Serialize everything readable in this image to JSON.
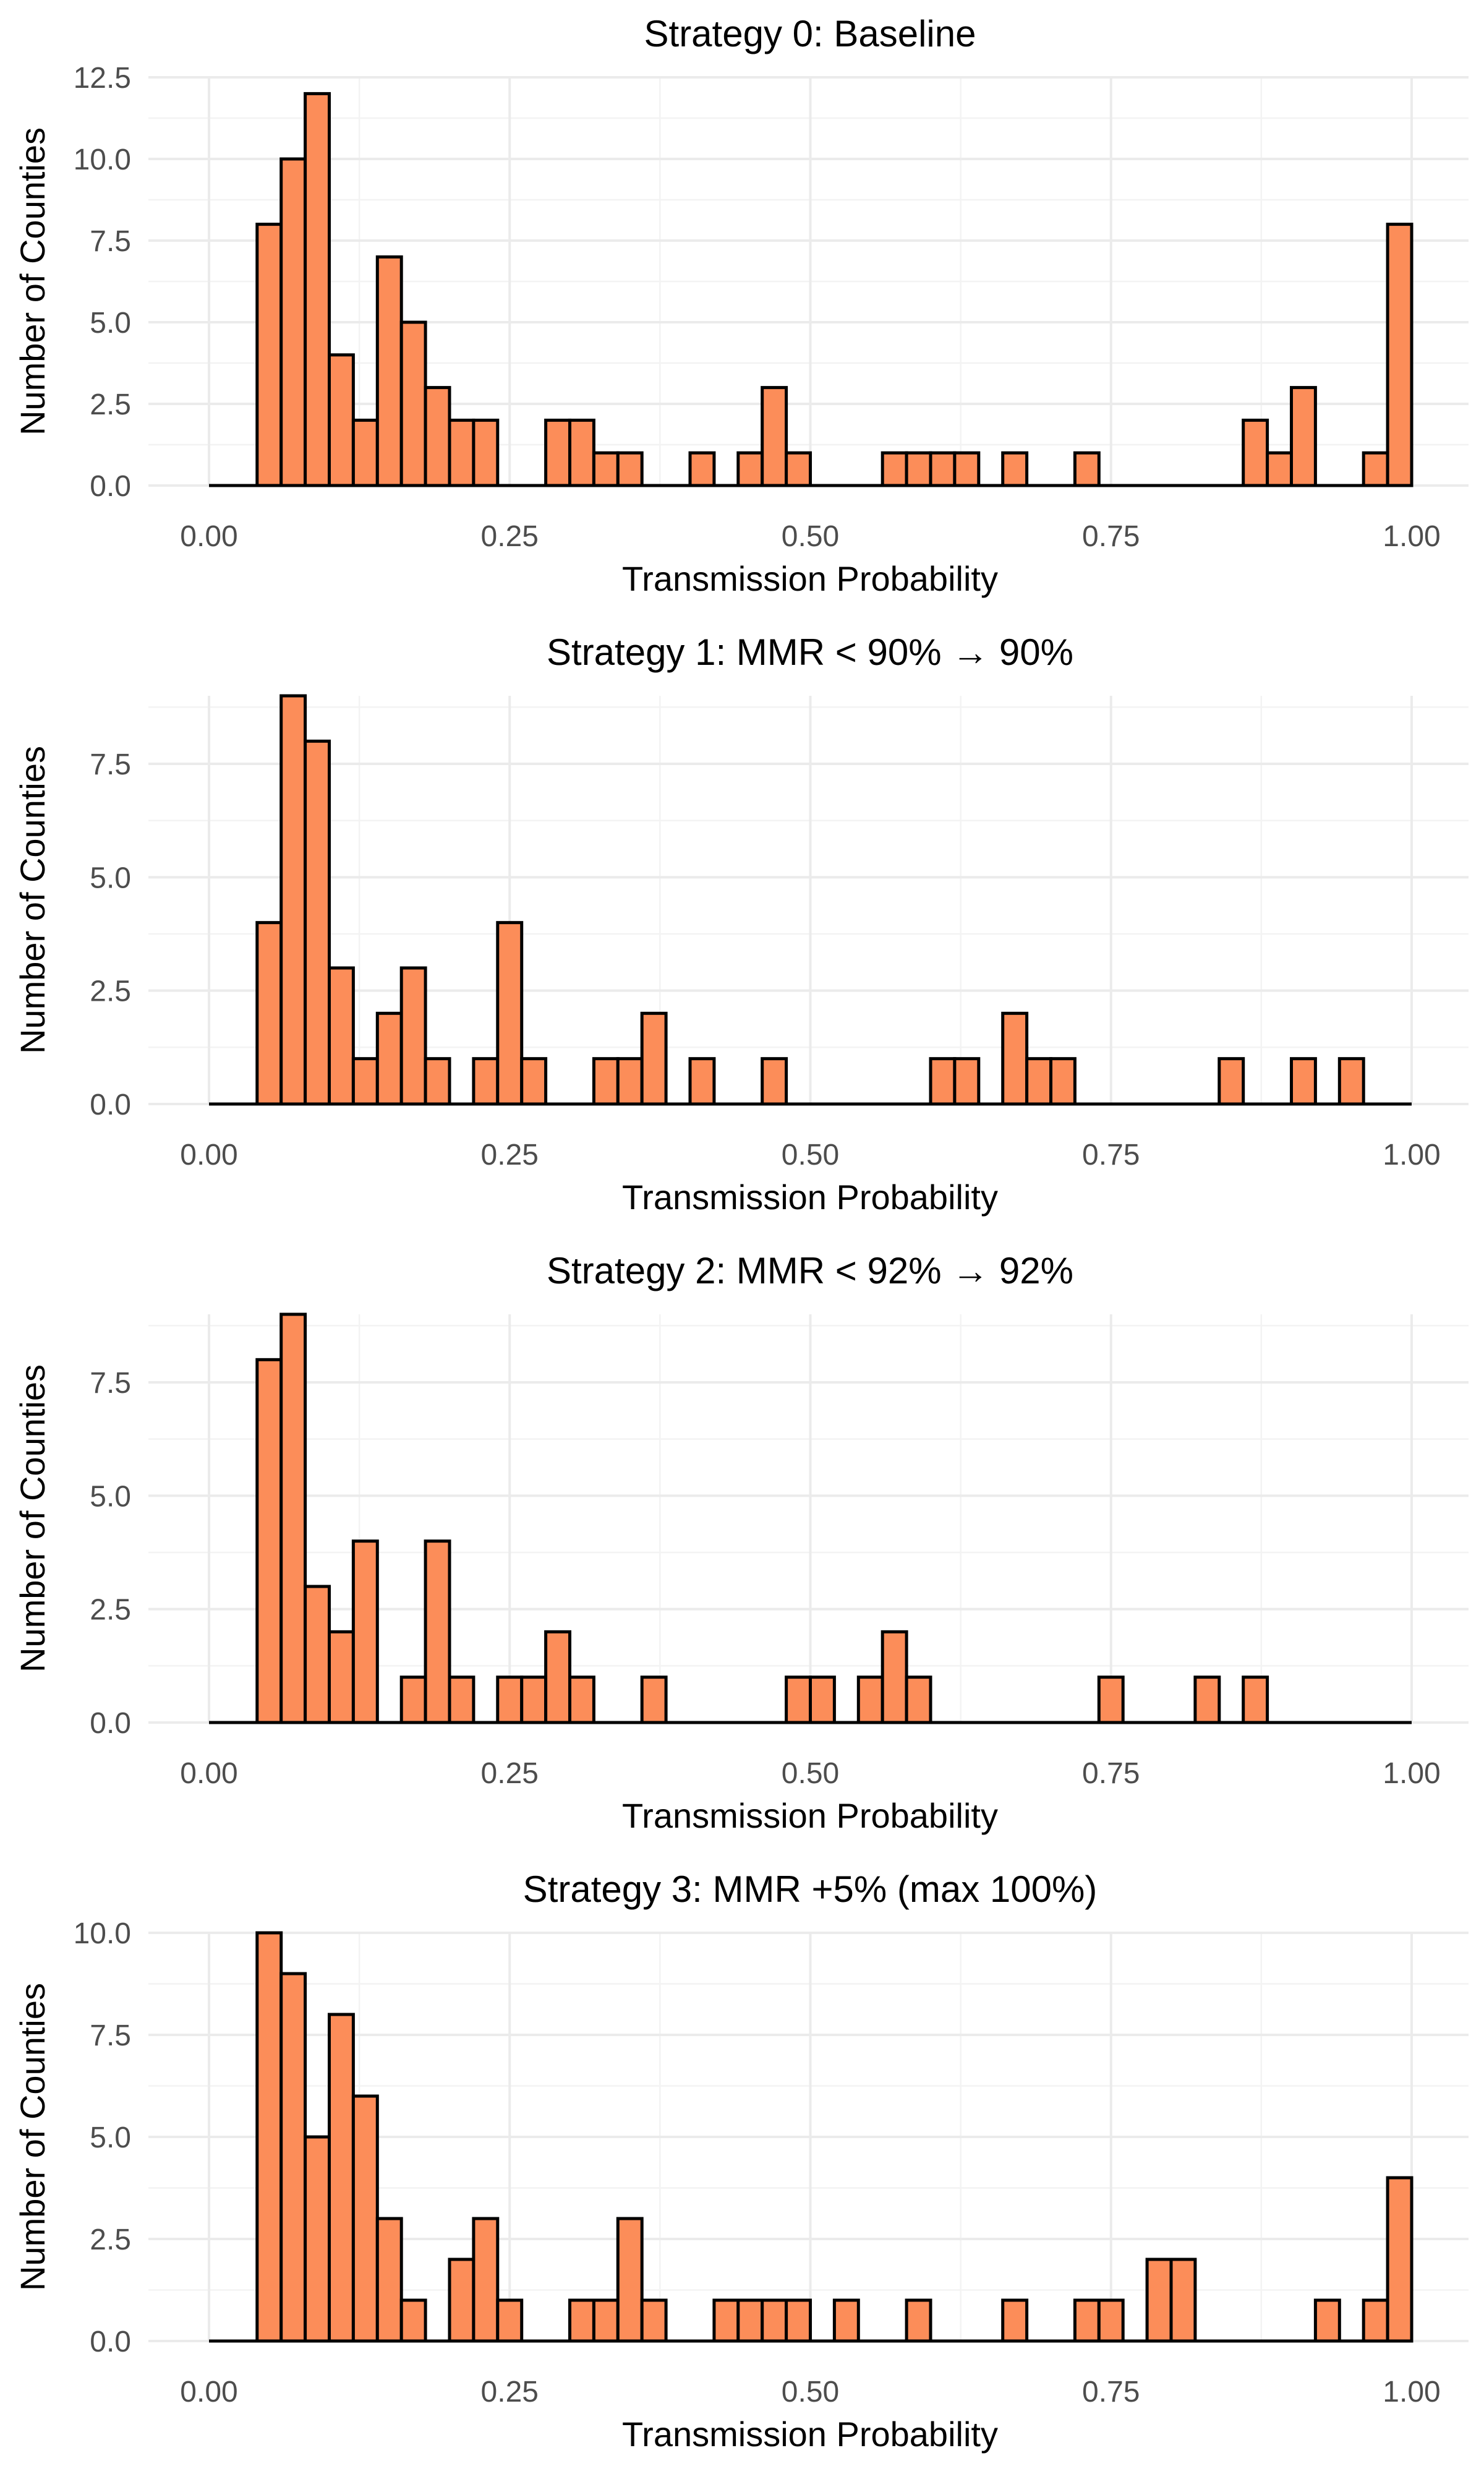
{
  "chart_data": [
    {
      "type": "bar",
      "title": "Strategy 0: Baseline",
      "xlabel": "Transmission Probability",
      "ylabel": "Number of Counties",
      "xlim": [
        0,
        1
      ],
      "ylim": [
        0,
        12.5
      ],
      "xticks": [
        "0.00",
        "0.25",
        "0.50",
        "0.75",
        "1.00"
      ],
      "yticks": [
        0,
        2.5,
        5,
        7.5,
        10,
        12.5
      ],
      "ytick_labels": [
        "0.0",
        "2.5",
        "5.0",
        "7.5",
        "10.0",
        "12.5"
      ],
      "bin_width": 0.02,
      "bins": [
        {
          "x": 0.05,
          "count": 8
        },
        {
          "x": 0.07,
          "count": 10
        },
        {
          "x": 0.09,
          "count": 12
        },
        {
          "x": 0.11,
          "count": 4
        },
        {
          "x": 0.13,
          "count": 2
        },
        {
          "x": 0.15,
          "count": 7
        },
        {
          "x": 0.17,
          "count": 5
        },
        {
          "x": 0.19,
          "count": 3
        },
        {
          "x": 0.21,
          "count": 2
        },
        {
          "x": 0.23,
          "count": 2
        },
        {
          "x": 0.29,
          "count": 2
        },
        {
          "x": 0.31,
          "count": 2
        },
        {
          "x": 0.33,
          "count": 1
        },
        {
          "x": 0.35,
          "count": 1
        },
        {
          "x": 0.41,
          "count": 1
        },
        {
          "x": 0.45,
          "count": 1
        },
        {
          "x": 0.47,
          "count": 3
        },
        {
          "x": 0.49,
          "count": 1
        },
        {
          "x": 0.57,
          "count": 1
        },
        {
          "x": 0.59,
          "count": 1
        },
        {
          "x": 0.61,
          "count": 1
        },
        {
          "x": 0.63,
          "count": 1
        },
        {
          "x": 0.67,
          "count": 1
        },
        {
          "x": 0.73,
          "count": 1
        },
        {
          "x": 0.87,
          "count": 2
        },
        {
          "x": 0.89,
          "count": 1
        },
        {
          "x": 0.91,
          "count": 3
        },
        {
          "x": 0.97,
          "count": 1
        },
        {
          "x": 0.99,
          "count": 8
        }
      ]
    },
    {
      "type": "bar",
      "title": "Strategy 1: MMR < 90% → 90%",
      "xlabel": "Transmission Probability",
      "ylabel": "Number of Counties",
      "xlim": [
        0,
        1
      ],
      "ylim": [
        0,
        9
      ],
      "xticks": [
        "0.00",
        "0.25",
        "0.50",
        "0.75",
        "1.00"
      ],
      "yticks": [
        0,
        2.5,
        5,
        7.5
      ],
      "ytick_labels": [
        "0.0",
        "2.5",
        "5.0",
        "7.5"
      ],
      "bin_width": 0.02,
      "bins": [
        {
          "x": 0.05,
          "count": 4
        },
        {
          "x": 0.07,
          "count": 9
        },
        {
          "x": 0.09,
          "count": 8
        },
        {
          "x": 0.11,
          "count": 3
        },
        {
          "x": 0.13,
          "count": 1
        },
        {
          "x": 0.15,
          "count": 2
        },
        {
          "x": 0.17,
          "count": 3
        },
        {
          "x": 0.19,
          "count": 1
        },
        {
          "x": 0.23,
          "count": 1
        },
        {
          "x": 0.25,
          "count": 4
        },
        {
          "x": 0.27,
          "count": 1
        },
        {
          "x": 0.33,
          "count": 1
        },
        {
          "x": 0.35,
          "count": 1
        },
        {
          "x": 0.37,
          "count": 2
        },
        {
          "x": 0.41,
          "count": 1
        },
        {
          "x": 0.47,
          "count": 1
        },
        {
          "x": 0.61,
          "count": 1
        },
        {
          "x": 0.63,
          "count": 1
        },
        {
          "x": 0.67,
          "count": 2
        },
        {
          "x": 0.69,
          "count": 1
        },
        {
          "x": 0.71,
          "count": 1
        },
        {
          "x": 0.85,
          "count": 1
        },
        {
          "x": 0.91,
          "count": 1
        },
        {
          "x": 0.95,
          "count": 1
        }
      ]
    },
    {
      "type": "bar",
      "title": "Strategy 2: MMR < 92% → 92%",
      "xlabel": "Transmission Probability",
      "ylabel": "Number of Counties",
      "xlim": [
        0,
        1
      ],
      "ylim": [
        0,
        9
      ],
      "xticks": [
        "0.00",
        "0.25",
        "0.50",
        "0.75",
        "1.00"
      ],
      "yticks": [
        0,
        2.5,
        5,
        7.5
      ],
      "ytick_labels": [
        "0.0",
        "2.5",
        "5.0",
        "7.5"
      ],
      "bin_width": 0.02,
      "bins": [
        {
          "x": 0.05,
          "count": 8
        },
        {
          "x": 0.07,
          "count": 9
        },
        {
          "x": 0.09,
          "count": 3
        },
        {
          "x": 0.11,
          "count": 2
        },
        {
          "x": 0.13,
          "count": 4
        },
        {
          "x": 0.17,
          "count": 1
        },
        {
          "x": 0.19,
          "count": 4
        },
        {
          "x": 0.21,
          "count": 1
        },
        {
          "x": 0.25,
          "count": 1
        },
        {
          "x": 0.27,
          "count": 1
        },
        {
          "x": 0.29,
          "count": 2
        },
        {
          "x": 0.31,
          "count": 1
        },
        {
          "x": 0.37,
          "count": 1
        },
        {
          "x": 0.49,
          "count": 1
        },
        {
          "x": 0.51,
          "count": 1
        },
        {
          "x": 0.55,
          "count": 1
        },
        {
          "x": 0.57,
          "count": 2
        },
        {
          "x": 0.59,
          "count": 1
        },
        {
          "x": 0.75,
          "count": 1
        },
        {
          "x": 0.83,
          "count": 1
        },
        {
          "x": 0.87,
          "count": 1
        }
      ]
    },
    {
      "type": "bar",
      "title": "Strategy 3: MMR +5% (max 100%)",
      "xlabel": "Transmission Probability",
      "ylabel": "Number of Counties",
      "xlim": [
        0,
        1
      ],
      "ylim": [
        0,
        10
      ],
      "xticks": [
        "0.00",
        "0.25",
        "0.50",
        "0.75",
        "1.00"
      ],
      "yticks": [
        0,
        2.5,
        5,
        7.5,
        10
      ],
      "ytick_labels": [
        "0.0",
        "2.5",
        "5.0",
        "7.5",
        "10.0"
      ],
      "bin_width": 0.02,
      "bins": [
        {
          "x": 0.05,
          "count": 10
        },
        {
          "x": 0.07,
          "count": 9
        },
        {
          "x": 0.09,
          "count": 5
        },
        {
          "x": 0.11,
          "count": 8
        },
        {
          "x": 0.13,
          "count": 6
        },
        {
          "x": 0.15,
          "count": 3
        },
        {
          "x": 0.17,
          "count": 1
        },
        {
          "x": 0.21,
          "count": 2
        },
        {
          "x": 0.23,
          "count": 3
        },
        {
          "x": 0.25,
          "count": 1
        },
        {
          "x": 0.31,
          "count": 1
        },
        {
          "x": 0.33,
          "count": 1
        },
        {
          "x": 0.35,
          "count": 3
        },
        {
          "x": 0.37,
          "count": 1
        },
        {
          "x": 0.43,
          "count": 1
        },
        {
          "x": 0.45,
          "count": 1
        },
        {
          "x": 0.47,
          "count": 1
        },
        {
          "x": 0.49,
          "count": 1
        },
        {
          "x": 0.53,
          "count": 1
        },
        {
          "x": 0.59,
          "count": 1
        },
        {
          "x": 0.67,
          "count": 1
        },
        {
          "x": 0.73,
          "count": 1
        },
        {
          "x": 0.75,
          "count": 1
        },
        {
          "x": 0.79,
          "count": 2
        },
        {
          "x": 0.81,
          "count": 2
        },
        {
          "x": 0.93,
          "count": 1
        },
        {
          "x": 0.97,
          "count": 1
        },
        {
          "x": 0.99,
          "count": 4
        }
      ]
    }
  ]
}
